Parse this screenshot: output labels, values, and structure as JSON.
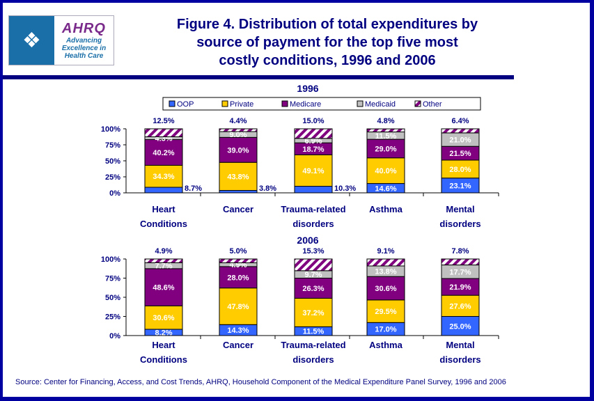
{
  "header": {
    "logo_hhs_icon": "hhs-eagle-icon",
    "logo_brand": "AHRQ",
    "logo_tagline": [
      "Advancing",
      "Excellence in",
      "Health Care"
    ],
    "title_lines": [
      "Figure 4. Distribution of total expenditures by",
      "source of payment for the top five most",
      "costly conditions, 1996 and 2006"
    ]
  },
  "colors": {
    "OOP": "#3366ff",
    "Private": "#ffcc00",
    "Medicare": "#800080",
    "Medicaid": "#c0c0c0",
    "Other": "#800080",
    "text": "#000080"
  },
  "legend": [
    "OOP",
    "Private",
    "Medicare",
    "Medicaid",
    "Other"
  ],
  "chart_data": [
    {
      "type": "bar",
      "stacked": true,
      "title": "1996",
      "categories": [
        "Heart Conditions",
        "Cancer",
        "Trauma-related disorders",
        "Asthma",
        "Mental disorders"
      ],
      "category_lines": [
        [
          "Heart",
          "Conditions"
        ],
        [
          "Cancer"
        ],
        [
          "Trauma-related",
          "disorders"
        ],
        [
          "Asthma"
        ],
        [
          "Mental",
          "disorders"
        ]
      ],
      "yticks": [
        "0%",
        "25%",
        "50%",
        "75%",
        "100%"
      ],
      "ylim": [
        0,
        100
      ],
      "series": [
        {
          "name": "OOP",
          "values": [
            8.7,
            3.8,
            10.3,
            14.6,
            23.1
          ],
          "labels": [
            "8.7%",
            "3.8%",
            "10.3%",
            "14.6%",
            "23.1%"
          ]
        },
        {
          "name": "Private",
          "values": [
            34.3,
            43.8,
            49.1,
            40.0,
            28.0
          ],
          "labels": [
            "34.3%",
            "43.8%",
            "49.1%",
            "40.0%",
            "28.0%"
          ]
        },
        {
          "name": "Medicare",
          "values": [
            40.2,
            39.0,
            18.7,
            29.0,
            21.5
          ],
          "labels": [
            "40.2%",
            "39.0%",
            "18.7%",
            "29.0%",
            "21.5%"
          ]
        },
        {
          "name": "Medicaid",
          "values": [
            4.3,
            9.0,
            6.9,
            11.5,
            21.0
          ],
          "labels": [
            "4.3%",
            "9.0%",
            "6.9%",
            "11.5%",
            "21.0%"
          ]
        },
        {
          "name": "Other",
          "values": [
            12.5,
            4.4,
            15.0,
            4.8,
            6.4
          ],
          "labels": [
            "12.5%",
            "4.4%",
            "15.0%",
            "4.8%",
            "6.4%"
          ]
        }
      ]
    },
    {
      "type": "bar",
      "stacked": true,
      "title": "2006",
      "categories": [
        "Heart Conditions",
        "Cancer",
        "Trauma-related disorders",
        "Asthma",
        "Mental disorders"
      ],
      "category_lines": [
        [
          "Heart",
          "Conditions"
        ],
        [
          "Cancer"
        ],
        [
          "Trauma-related",
          "disorders"
        ],
        [
          "Asthma"
        ],
        [
          "Mental",
          "disorders"
        ]
      ],
      "yticks": [
        "0%",
        "25%",
        "50%",
        "75%",
        "100%"
      ],
      "ylim": [
        0,
        100
      ],
      "series": [
        {
          "name": "OOP",
          "values": [
            8.2,
            14.3,
            11.5,
            17.0,
            25.0
          ],
          "labels": [
            "8.2%",
            "14.3%",
            "11.5%",
            "17.0%",
            "25.0%"
          ]
        },
        {
          "name": "Private",
          "values": [
            30.6,
            47.8,
            37.2,
            29.5,
            27.6
          ],
          "labels": [
            "30.6%",
            "47.8%",
            "37.2%",
            "29.5%",
            "27.6%"
          ]
        },
        {
          "name": "Medicare",
          "values": [
            48.6,
            28.0,
            26.3,
            30.6,
            21.9
          ],
          "labels": [
            "48.6%",
            "28.0%",
            "26.3%",
            "30.6%",
            "21.9%"
          ]
        },
        {
          "name": "Medicaid",
          "values": [
            7.7,
            4.9,
            9.7,
            13.8,
            17.7
          ],
          "labels": [
            "7.7%",
            "4.9%",
            "9.7%",
            "13.8%",
            "17.7%"
          ]
        },
        {
          "name": "Other",
          "values": [
            4.9,
            5.0,
            15.3,
            9.1,
            7.8
          ],
          "labels": [
            "4.9%",
            "5.0%",
            "15.3%",
            "9.1%",
            "7.8%"
          ]
        }
      ]
    }
  ],
  "footer": {
    "source": "Source: Center for Financing, Access, and Cost Trends, AHRQ, Household Component of the Medical Expenditure Panel Survey, 1996 and 2006"
  }
}
